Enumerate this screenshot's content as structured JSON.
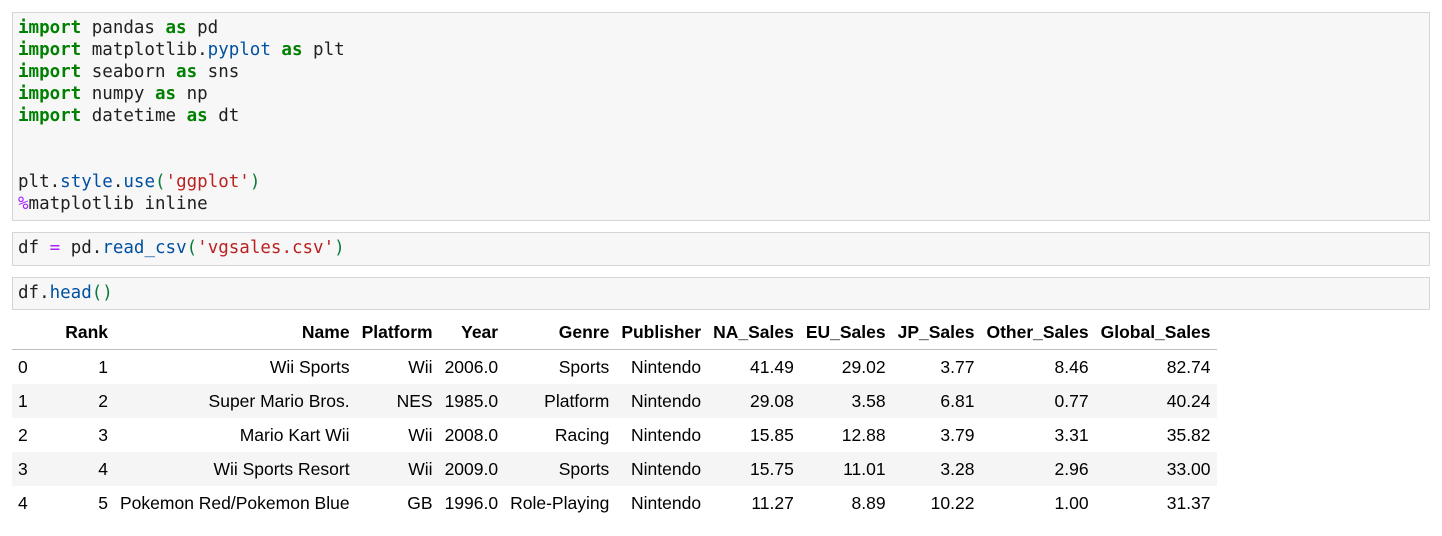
{
  "cells": [
    {
      "lines": [
        [
          {
            "t": "import",
            "c": "kw"
          },
          {
            "t": " pandas ",
            "c": ""
          },
          {
            "t": "as",
            "c": "kw"
          },
          {
            "t": " pd",
            "c": ""
          }
        ],
        [
          {
            "t": "import",
            "c": "kw"
          },
          {
            "t": " matplotlib.",
            "c": ""
          },
          {
            "t": "pyplot",
            "c": "fn"
          },
          {
            "t": " ",
            "c": ""
          },
          {
            "t": "as",
            "c": "kw"
          },
          {
            "t": " plt",
            "c": ""
          }
        ],
        [
          {
            "t": "import",
            "c": "kw"
          },
          {
            "t": " seaborn ",
            "c": ""
          },
          {
            "t": "as",
            "c": "kw"
          },
          {
            "t": " sns",
            "c": ""
          }
        ],
        [
          {
            "t": "import",
            "c": "kw"
          },
          {
            "t": " numpy ",
            "c": ""
          },
          {
            "t": "as",
            "c": "kw"
          },
          {
            "t": " np",
            "c": ""
          }
        ],
        [
          {
            "t": "import",
            "c": "kw"
          },
          {
            "t": " datetime ",
            "c": ""
          },
          {
            "t": "as",
            "c": "kw"
          },
          {
            "t": " dt",
            "c": ""
          }
        ],
        [],
        [],
        [
          {
            "t": "plt.",
            "c": ""
          },
          {
            "t": "style",
            "c": "fn"
          },
          {
            "t": ".",
            "c": ""
          },
          {
            "t": "use",
            "c": "fn"
          },
          {
            "t": "(",
            "c": "par"
          },
          {
            "t": "'ggplot'",
            "c": "str"
          },
          {
            "t": ")",
            "c": "par"
          }
        ],
        [
          {
            "t": "%",
            "c": "op"
          },
          {
            "t": "matplotlib inline",
            "c": ""
          }
        ]
      ]
    },
    {
      "lines": [
        [
          {
            "t": "df ",
            "c": ""
          },
          {
            "t": "=",
            "c": "op"
          },
          {
            "t": " pd.",
            "c": ""
          },
          {
            "t": "read_csv",
            "c": "fn"
          },
          {
            "t": "(",
            "c": "par"
          },
          {
            "t": "'vgsales.csv'",
            "c": "str"
          },
          {
            "t": ")",
            "c": "par"
          }
        ]
      ]
    },
    {
      "lines": [
        [
          {
            "t": "df.",
            "c": ""
          },
          {
            "t": "head",
            "c": "fn"
          },
          {
            "t": "()",
            "c": "par"
          }
        ]
      ]
    }
  ],
  "table": {
    "columns": [
      "",
      "Rank",
      "Name",
      "Platform",
      "Year",
      "Genre",
      "Publisher",
      "NA_Sales",
      "EU_Sales",
      "JP_Sales",
      "Other_Sales",
      "Global_Sales"
    ],
    "rows": [
      [
        "0",
        "1",
        "Wii Sports",
        "Wii",
        "2006.0",
        "Sports",
        "Nintendo",
        "41.49",
        "29.02",
        "3.77",
        "8.46",
        "82.74"
      ],
      [
        "1",
        "2",
        "Super Mario Bros.",
        "NES",
        "1985.0",
        "Platform",
        "Nintendo",
        "29.08",
        "3.58",
        "6.81",
        "0.77",
        "40.24"
      ],
      [
        "2",
        "3",
        "Mario Kart Wii",
        "Wii",
        "2008.0",
        "Racing",
        "Nintendo",
        "15.85",
        "12.88",
        "3.79",
        "3.31",
        "35.82"
      ],
      [
        "3",
        "4",
        "Wii Sports Resort",
        "Wii",
        "2009.0",
        "Sports",
        "Nintendo",
        "15.75",
        "11.01",
        "3.28",
        "2.96",
        "33.00"
      ],
      [
        "4",
        "5",
        "Pokemon Red/Pokemon Blue",
        "GB",
        "1996.0",
        "Role-Playing",
        "Nintendo",
        "11.27",
        "8.89",
        "10.22",
        "1.00",
        "31.37"
      ]
    ]
  }
}
